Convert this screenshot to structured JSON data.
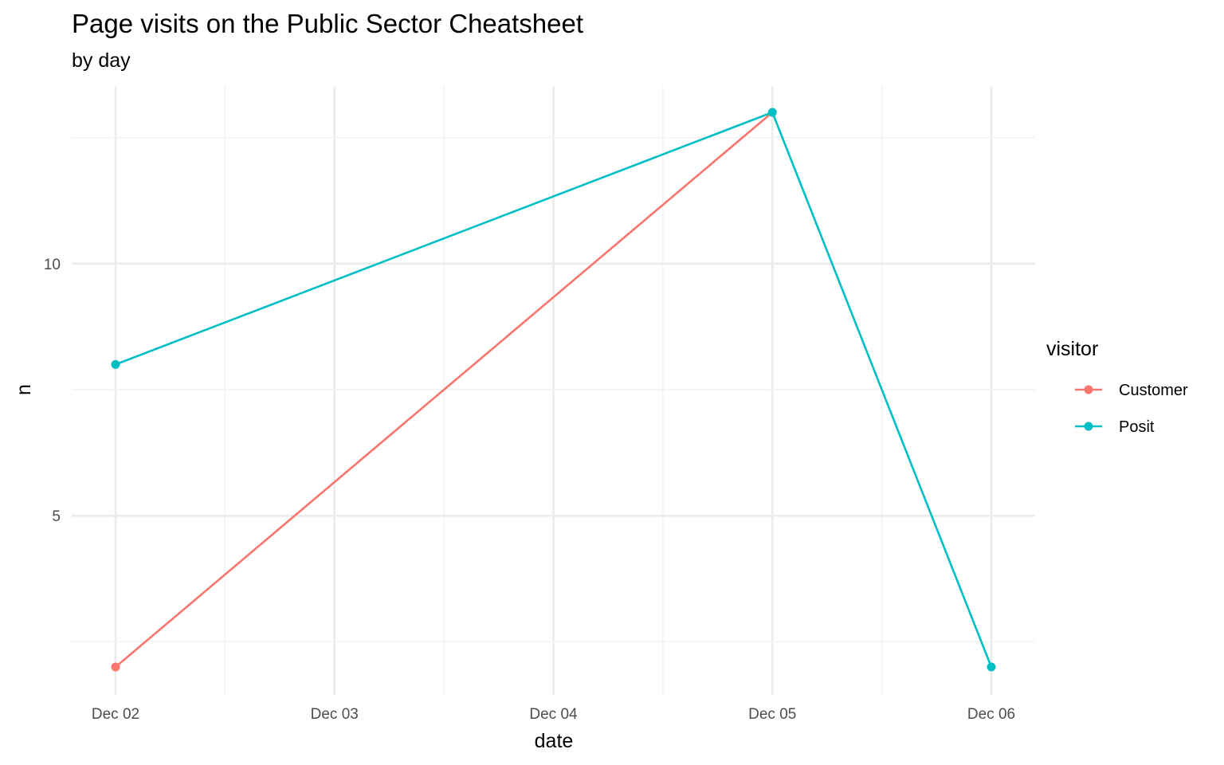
{
  "chart_data": {
    "type": "line",
    "title": "Page visits on the Public Sector Cheatsheet",
    "subtitle": "by day",
    "xlabel": "date",
    "ylabel": "n",
    "x_ticks": [
      "Dec 02",
      "Dec 03",
      "Dec 04",
      "Dec 05",
      "Dec 06"
    ],
    "xlim": [
      "2023-12-02",
      "2023-12-06"
    ],
    "ylim": [
      1.5,
      13.5
    ],
    "y_ticks": [
      5,
      10
    ],
    "grid": true,
    "legend": {
      "title": "visitor",
      "position": "right"
    },
    "series": [
      {
        "name": "Customer",
        "color": "#F8766D",
        "points": [
          {
            "x": "2023-12-02",
            "y": 2
          },
          {
            "x": "2023-12-05",
            "y": 13
          }
        ]
      },
      {
        "name": "Posit",
        "color": "#00BFC4",
        "points": [
          {
            "x": "2023-12-02",
            "y": 8
          },
          {
            "x": "2023-12-05",
            "y": 13
          },
          {
            "x": "2023-12-06",
            "y": 2
          }
        ]
      }
    ]
  }
}
